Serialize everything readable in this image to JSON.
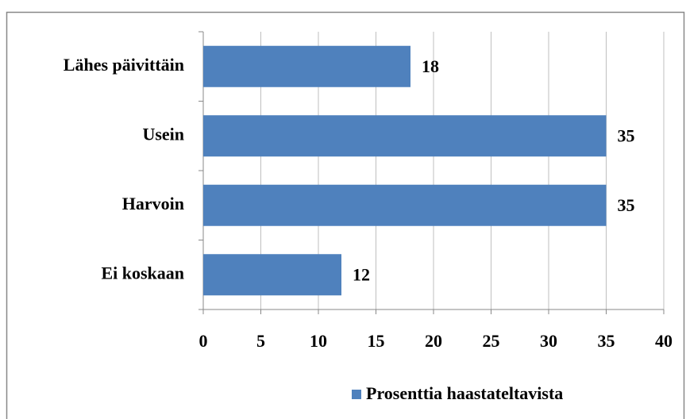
{
  "chart_data": {
    "type": "bar",
    "orientation": "horizontal",
    "categories": [
      "Lähes päivittäin",
      "Usein",
      "Harvoin",
      "Ei koskaan"
    ],
    "series": [
      {
        "name": "Prosenttia haastateltavista",
        "color": "#4f81bd",
        "values": [
          18,
          35,
          35,
          12
        ]
      }
    ],
    "xlim": [
      0,
      40
    ],
    "xticks": [
      0,
      5,
      10,
      15,
      20,
      25,
      30,
      35,
      40
    ],
    "grid": true,
    "legend": "bottom"
  }
}
